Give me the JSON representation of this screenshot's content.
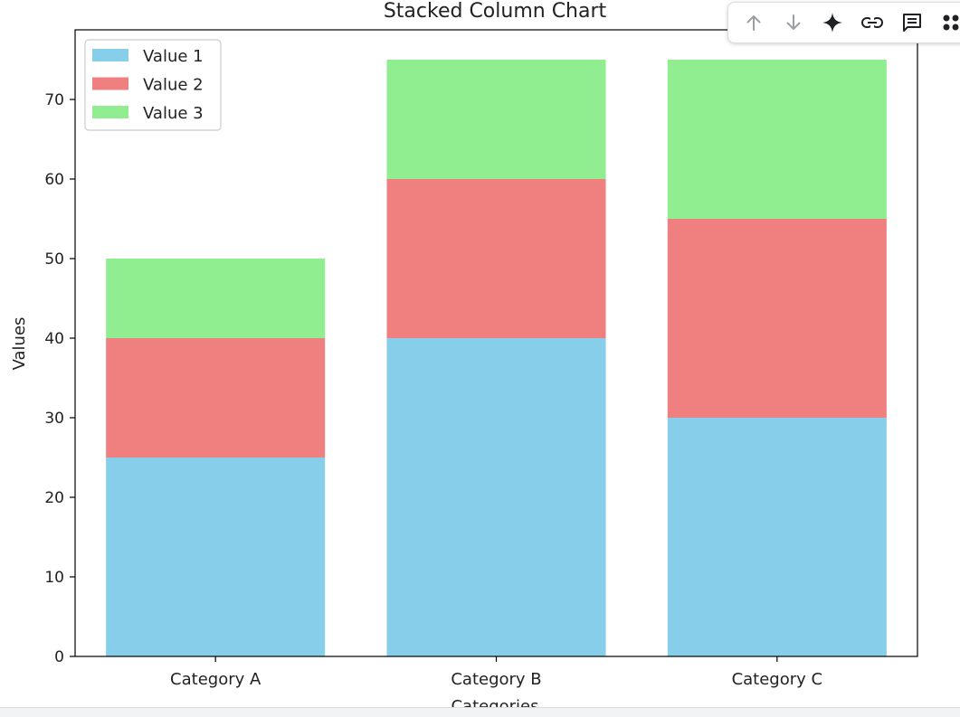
{
  "chart_data": {
    "type": "bar",
    "stacked": true,
    "title": "Stacked Column Chart",
    "xlabel": "Categories",
    "ylabel": "Values",
    "categories": [
      "Category A",
      "Category B",
      "Category C"
    ],
    "series": [
      {
        "name": "Value 1",
        "values": [
          25,
          40,
          30
        ],
        "color": "#87ceeb"
      },
      {
        "name": "Value 2",
        "values": [
          15,
          20,
          25
        ],
        "color": "#f08080"
      },
      {
        "name": "Value 3",
        "values": [
          10,
          15,
          20
        ],
        "color": "#90ee90"
      }
    ],
    "ylim": [
      0,
      78.75
    ],
    "yticks": [
      0,
      10,
      20,
      30,
      40,
      50,
      60,
      70
    ],
    "legend": "top-left",
    "grid": false
  },
  "toolbar": {
    "icons": [
      "arrow-up-icon",
      "arrow-down-icon",
      "sparkle-icon",
      "link-icon",
      "comment-icon",
      "more-icon"
    ]
  }
}
